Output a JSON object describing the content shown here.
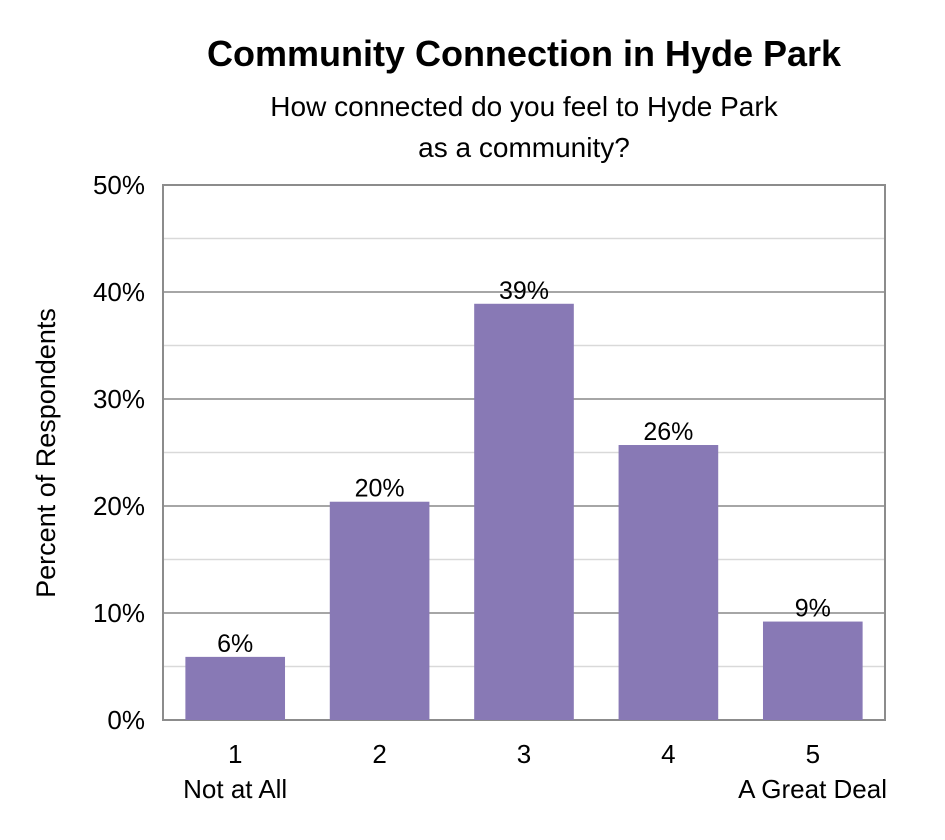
{
  "chart_data": {
    "type": "bar",
    "title": "Community Connection in Hyde Park",
    "subtitle_lines": [
      "How connected do you feel to Hyde Park",
      "as a community?"
    ],
    "ylabel": "Percent of Respondents",
    "categories": [
      "1",
      "2",
      "3",
      "4",
      "5"
    ],
    "category_sublabels": [
      "Not at All",
      "",
      "",
      "",
      "A Great Deal"
    ],
    "values": [
      6,
      20,
      39,
      26,
      9
    ],
    "data_labels": [
      "6%",
      "20%",
      "39%",
      "26%",
      "9%"
    ],
    "bar_heights": [
      5.9,
      20.4,
      38.9,
      25.7,
      9.2
    ],
    "ylim": [
      0,
      50
    ],
    "yticks": [
      "0%",
      "10%",
      "20%",
      "30%",
      "40%",
      "50%"
    ],
    "grid": true,
    "colors": {
      "bar": "#8879b5",
      "gridline_major": "#a6a6a6",
      "gridline_minor": "#d9d9d9",
      "frame": "#8c8c8c"
    }
  }
}
